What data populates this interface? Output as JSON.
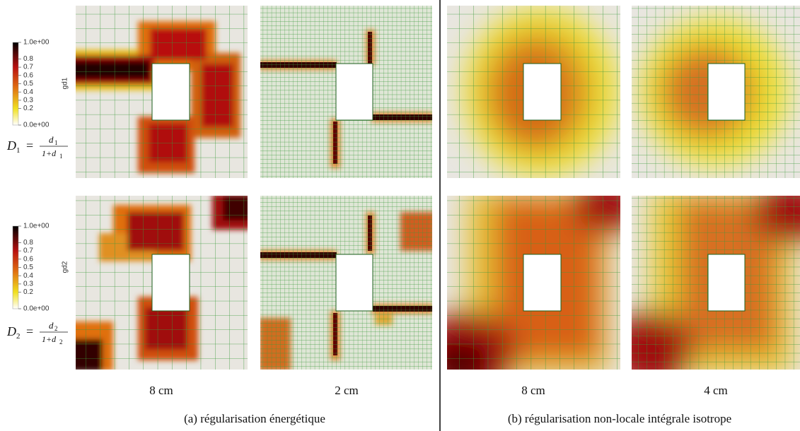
{
  "colorbars": [
    {
      "label": "gd1",
      "ticks": [
        "1.0e+00",
        "0.8",
        "0.7",
        "0.6",
        "0.5",
        "0.4",
        "0.3",
        "0.2",
        "0.0e+00"
      ]
    },
    {
      "label": "gd2",
      "ticks": [
        "1.0e+00",
        "0.8",
        "0.7",
        "0.6",
        "0.5",
        "0.4",
        "0.3",
        "0.2",
        "0.0e+00"
      ]
    }
  ],
  "formulas": [
    {
      "lhs": "D",
      "lhs_sub": "1",
      "eq": "=",
      "num": "d",
      "num_sub": "1",
      "den": "1+d",
      "den_sub": "1"
    },
    {
      "lhs": "D",
      "lhs_sub": "2",
      "eq": "=",
      "num": "d",
      "num_sub": "2",
      "den": "1+d",
      "den_sub": "2"
    }
  ],
  "panel_labels": [
    "8 cm",
    "2 cm",
    "8 cm",
    "4 cm"
  ],
  "captions": [
    "(a) régularisation énergétique",
    "(b) régularisation non-locale intégrale isotrope"
  ]
}
